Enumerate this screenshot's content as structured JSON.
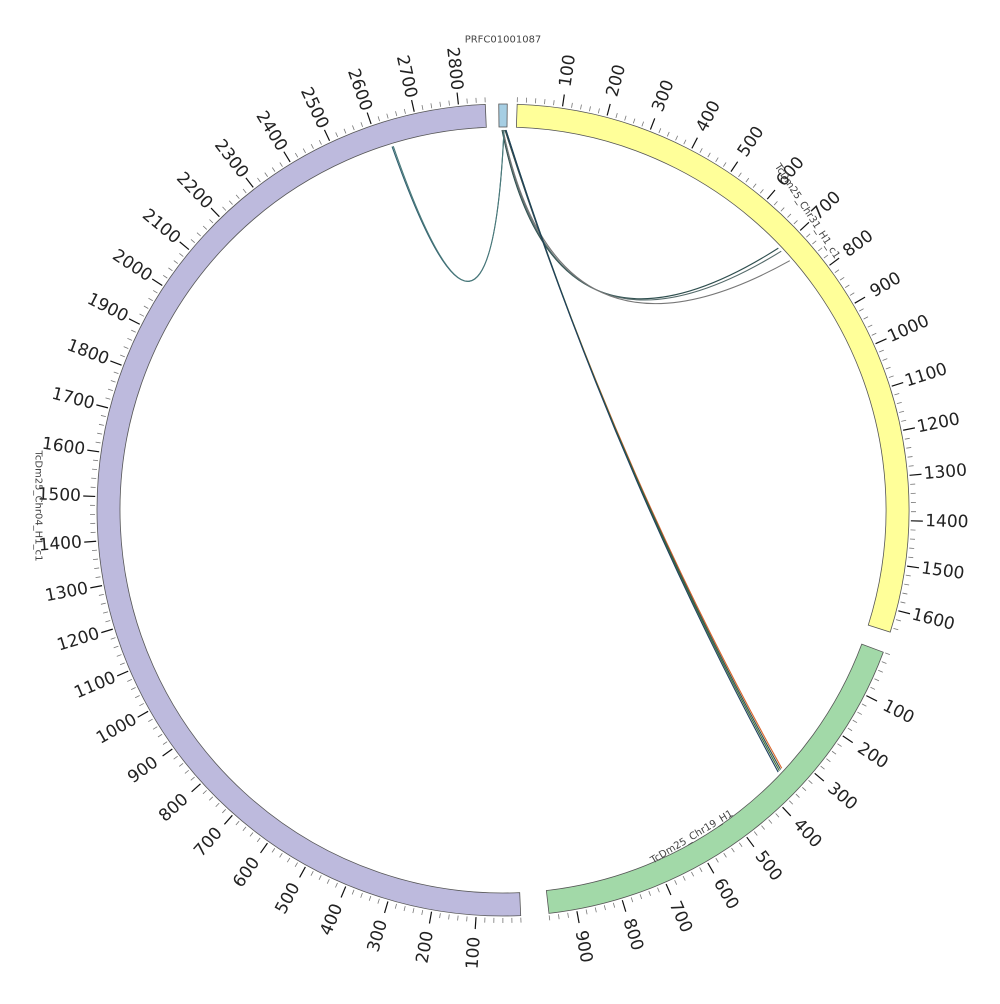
{
  "chromosomes": [
    {
      "id": "PRFC01001087",
      "label": "PRFC01001087",
      "length": 8,
      "color": "#a6cee3",
      "ticks": []
    },
    {
      "id": "TcDm25_Chr31_H1_c1",
      "label": "TcDm25_Chr31_H1_c1",
      "length": 1650,
      "color": "#ffff99",
      "ticks": [
        "100",
        "200",
        "300",
        "400",
        "500",
        "600",
        "700",
        "800",
        "900",
        "1000",
        "1100",
        "1200",
        "1300",
        "1400",
        "1500",
        "1600"
      ]
    },
    {
      "id": "TcDm25_Chr19_H1",
      "label": "TcDm25_Chr19_H1",
      "length": 960,
      "color": "#a2d9a8",
      "ticks": [
        "100",
        "200",
        "300",
        "400",
        "500",
        "600",
        "700",
        "800",
        "900"
      ]
    },
    {
      "id": "TcDm25_Chr04_H1_c1",
      "label": "TcDm25_Chr04_H1_c1",
      "length": 2860,
      "color": "#bdbadd",
      "ticks": [
        "100",
        "200",
        "300",
        "400",
        "500",
        "600",
        "700",
        "800",
        "900",
        "1000",
        "1100",
        "1200",
        "1300",
        "1400",
        "1500",
        "1600",
        "1700",
        "1800",
        "1900",
        "2000",
        "2100",
        "2200",
        "2300",
        "2400",
        "2500",
        "2600",
        "2700",
        "2800"
      ]
    }
  ],
  "links": [
    {
      "from": "PRFC01001087",
      "from_pos": 3,
      "to": "TcDm25_Chr31_H1_c1",
      "to_pos": 695,
      "color": "#2f4f4f"
    },
    {
      "from": "PRFC01001087",
      "from_pos": 4,
      "to": "TcDm25_Chr31_H1_c1",
      "to_pos": 705,
      "color": "#556b6b"
    },
    {
      "from": "PRFC01001087",
      "from_pos": 4,
      "to": "TcDm25_Chr31_H1_c1",
      "to_pos": 735,
      "color": "#777777"
    },
    {
      "from": "PRFC01001087",
      "from_pos": 5,
      "to": "TcDm25_Chr04_H1_c1",
      "to_pos": 2630,
      "color": "#2f5f6f"
    },
    {
      "from": "PRFC01001087",
      "from_pos": 5,
      "to": "TcDm25_Chr04_H1_c1",
      "to_pos": 2633,
      "color": "#4a7a7a"
    },
    {
      "from": "PRFC01001087",
      "from_pos": 6,
      "to": "TcDm25_Chr19_H1",
      "to_pos": 340,
      "color": "#d9642a"
    },
    {
      "from": "PRFC01001087",
      "from_pos": 6,
      "to": "TcDm25_Chr19_H1",
      "to_pos": 344,
      "color": "#2f4f4f"
    },
    {
      "from": "PRFC01001087",
      "from_pos": 7,
      "to": "TcDm25_Chr19_H1",
      "to_pos": 348,
      "color": "#3a6e3a"
    },
    {
      "from": "PRFC01001087",
      "from_pos": 7,
      "to": "TcDm25_Chr19_H1",
      "to_pos": 352,
      "color": "#1f3f5f"
    }
  ]
}
